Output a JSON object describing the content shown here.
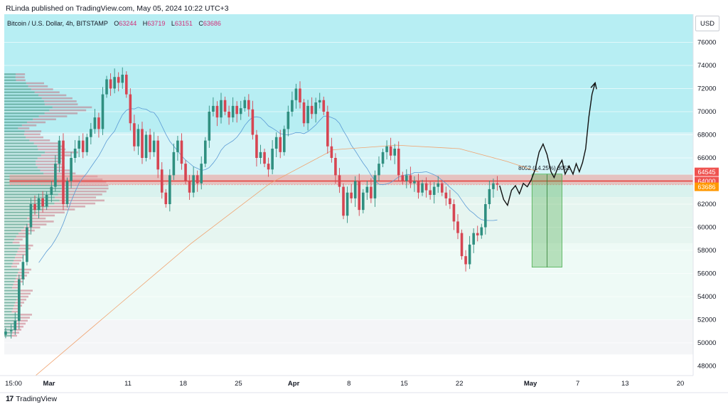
{
  "header": {
    "published": "RLinda published on TradingView.com, May 05, 2024 10:22 UTC+3"
  },
  "legend": {
    "symbol": "Bitcoin / U.S. Dollar, 4h, BITSTAMP",
    "o_label": "O",
    "o_value": "63244",
    "h_label": "H",
    "h_value": "63719",
    "l_label": "L",
    "l_value": "63151",
    "c_label": "C",
    "c_value": "63686"
  },
  "currency_button": "USD",
  "footer": {
    "brand": "TradingView",
    "logo": "17"
  },
  "colors": {
    "up": "#26a69a",
    "down": "#ef5350",
    "zone": "#ef9a9a",
    "measure": "#4caf50",
    "teal_bg": "#b2ebf2",
    "price_label": "#ff9800"
  },
  "chart_data": {
    "type": "candlestick",
    "y_ticks": [
      48000,
      50000,
      52000,
      54000,
      56000,
      58000,
      60000,
      62000,
      64000,
      66000,
      68000,
      70000,
      72000,
      74000,
      76000
    ],
    "x_ticks": [
      {
        "label": "15:00",
        "day": -4.5,
        "bold": false
      },
      {
        "label": "Mar",
        "day": 0,
        "bold": true
      },
      {
        "label": "11",
        "day": 10,
        "bold": false
      },
      {
        "label": "18",
        "day": 17,
        "bold": false
      },
      {
        "label": "25",
        "day": 24,
        "bold": false
      },
      {
        "label": "Apr",
        "day": 31,
        "bold": true
      },
      {
        "label": "8",
        "day": 38,
        "bold": false
      },
      {
        "label": "15",
        "day": 45,
        "bold": false
      },
      {
        "label": "22",
        "day": 52,
        "bold": false
      },
      {
        "label": "May",
        "day": 61,
        "bold": true
      },
      {
        "label": "7",
        "day": 67,
        "bold": false
      },
      {
        "label": "13",
        "day": 73,
        "bold": false
      },
      {
        "label": "20",
        "day": 80,
        "bold": false
      }
    ],
    "price_labels": [
      {
        "value": 64545,
        "text": "64545",
        "color": "#ef5350"
      },
      {
        "value": 64000,
        "text": "64000",
        "color": "#ef5350"
      },
      {
        "value": 63686,
        "text": "63686",
        "color": "#ff9800"
      }
    ],
    "zone": {
      "low": 63700,
      "high": 64545,
      "from_day": -5
    },
    "levels": [
      64000,
      63686
    ],
    "measure": {
      "label": "8052 (14.25%) 8052",
      "from_day": 61.2,
      "to_day": 65.0,
      "low": 56550,
      "high": 64600
    },
    "closes": [
      [
        -5.5,
        51000
      ],
      [
        -4.8,
        51100
      ],
      [
        -4.3,
        51900
      ],
      [
        -3.8,
        55500
      ],
      [
        -3.3,
        57000
      ],
      [
        -2.8,
        60000
      ],
      [
        -2.3,
        62000
      ],
      [
        -1.8,
        61500
      ],
      [
        -1.3,
        62500
      ],
      [
        -0.8,
        61800
      ],
      [
        -0.3,
        62800
      ],
      [
        0.3,
        63500
      ],
      [
        0.8,
        65500
      ],
      [
        1.3,
        67500
      ],
      [
        1.8,
        62000
      ],
      [
        2.3,
        64000
      ],
      [
        2.8,
        66000
      ],
      [
        3.3,
        66800
      ],
      [
        3.8,
        67500
      ],
      [
        4.3,
        66500
      ],
      [
        4.8,
        67800
      ],
      [
        5.3,
        68500
      ],
      [
        5.8,
        69500
      ],
      [
        6.3,
        68500
      ],
      [
        6.8,
        71500
      ],
      [
        7.3,
        72800
      ],
      [
        7.8,
        72000
      ],
      [
        8.3,
        73000
      ],
      [
        8.8,
        72500
      ],
      [
        9.3,
        73200
      ],
      [
        9.8,
        71500
      ],
      [
        10.3,
        69000
      ],
      [
        10.8,
        67000
      ],
      [
        11.3,
        68500
      ],
      [
        11.8,
        66000
      ],
      [
        12.3,
        68000
      ],
      [
        12.8,
        66500
      ],
      [
        13.3,
        67500
      ],
      [
        13.8,
        65000
      ],
      [
        14.3,
        63000
      ],
      [
        14.8,
        62000
      ],
      [
        15.3,
        64500
      ],
      [
        15.8,
        66500
      ],
      [
        16.3,
        67500
      ],
      [
        16.8,
        65500
      ],
      [
        17.3,
        64000
      ],
      [
        17.8,
        63000
      ],
      [
        18.3,
        64500
      ],
      [
        18.8,
        63800
      ],
      [
        19.3,
        65500
      ],
      [
        19.8,
        67500
      ],
      [
        20.3,
        70000
      ],
      [
        20.8,
        70500
      ],
      [
        21.3,
        69500
      ],
      [
        21.8,
        71000
      ],
      [
        22.3,
        70000
      ],
      [
        22.8,
        69500
      ],
      [
        23.3,
        70500
      ],
      [
        23.8,
        69800
      ],
      [
        24.3,
        70300
      ],
      [
        24.8,
        71000
      ],
      [
        25.3,
        70200
      ],
      [
        25.8,
        68000
      ],
      [
        26.3,
        66000
      ],
      [
        26.8,
        66500
      ],
      [
        27.3,
        65500
      ],
      [
        27.8,
        65000
      ],
      [
        28.3,
        66800
      ],
      [
        28.8,
        67800
      ],
      [
        29.3,
        66500
      ],
      [
        29.8,
        68500
      ],
      [
        30.3,
        70000
      ],
      [
        30.8,
        71000
      ],
      [
        31.3,
        72000
      ],
      [
        31.8,
        70800
      ],
      [
        32.3,
        69000
      ],
      [
        32.8,
        70500
      ],
      [
        33.3,
        69800
      ],
      [
        33.8,
        70800
      ],
      [
        34.3,
        71000
      ],
      [
        34.8,
        70000
      ],
      [
        35.3,
        67000
      ],
      [
        35.8,
        66000
      ],
      [
        36.3,
        64500
      ],
      [
        36.8,
        63500
      ],
      [
        37.3,
        61000
      ],
      [
        37.8,
        63000
      ],
      [
        38.3,
        62500
      ],
      [
        38.8,
        64000
      ],
      [
        39.3,
        61500
      ],
      [
        39.8,
        63000
      ],
      [
        40.3,
        63500
      ],
      [
        40.8,
        62500
      ],
      [
        41.3,
        64500
      ],
      [
        41.8,
        65500
      ],
      [
        42.3,
        66500
      ],
      [
        42.8,
        67000
      ],
      [
        43.3,
        66200
      ],
      [
        43.8,
        66800
      ],
      [
        44.3,
        64500
      ],
      [
        44.8,
        64000
      ],
      [
        45.3,
        64500
      ],
      [
        45.8,
        63800
      ],
      [
        46.3,
        64000
      ],
      [
        46.8,
        63000
      ],
      [
        47.3,
        63800
      ],
      [
        47.8,
        63200
      ],
      [
        48.3,
        62800
      ],
      [
        48.8,
        63500
      ],
      [
        49.3,
        63800
      ],
      [
        49.8,
        63000
      ],
      [
        50.3,
        62500
      ],
      [
        50.8,
        62000
      ],
      [
        51.3,
        60500
      ],
      [
        51.8,
        59500
      ],
      [
        52.3,
        57500
      ],
      [
        52.8,
        56800
      ],
      [
        53.3,
        58500
      ],
      [
        53.8,
        59500
      ],
      [
        54.3,
        59300
      ],
      [
        54.8,
        60000
      ],
      [
        55.3,
        62000
      ],
      [
        55.8,
        63300
      ],
      [
        56.3,
        63800
      ],
      [
        56.8,
        63686
      ]
    ],
    "projection": [
      [
        57.1,
        63600
      ],
      [
        57.6,
        62400
      ],
      [
        58.1,
        61900
      ],
      [
        58.6,
        63200
      ],
      [
        59.1,
        63600
      ],
      [
        59.6,
        62900
      ],
      [
        60.1,
        63800
      ],
      [
        60.6,
        63500
      ],
      [
        61.1,
        64100
      ],
      [
        61.6,
        65000
      ],
      [
        62.1,
        66500
      ],
      [
        62.6,
        67200
      ],
      [
        63.1,
        66300
      ],
      [
        63.6,
        64800
      ],
      [
        64.0,
        64300
      ],
      [
        64.5,
        65200
      ],
      [
        65.0,
        65800
      ],
      [
        65.4,
        64600
      ],
      [
        65.9,
        65300
      ],
      [
        66.4,
        64600
      ],
      [
        66.8,
        65500
      ],
      [
        67.2,
        64800
      ],
      [
        67.6,
        65600
      ],
      [
        68.0,
        66800
      ],
      [
        68.4,
        69500
      ],
      [
        68.8,
        71500
      ],
      [
        69.2,
        72500
      ]
    ]
  }
}
